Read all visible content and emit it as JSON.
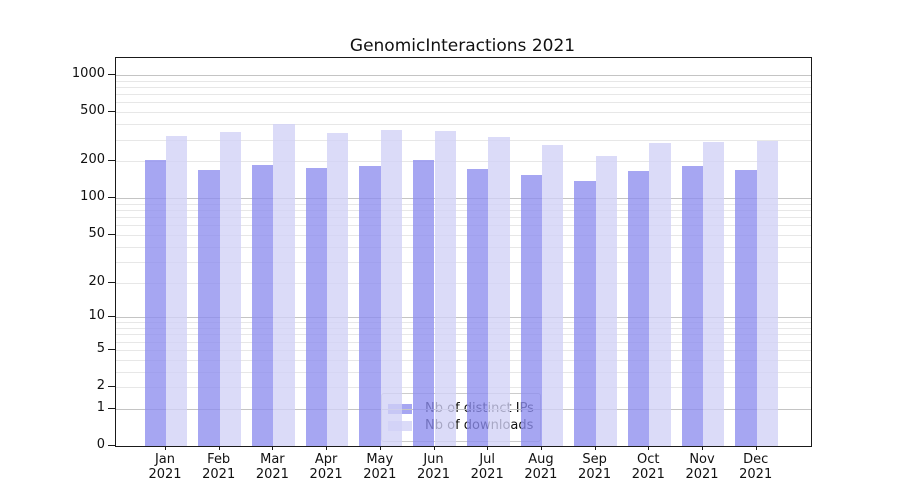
{
  "chart_data": {
    "type": "bar",
    "title": "GenomicInteractions 2021",
    "categories": [
      "Jan 2021",
      "Feb 2021",
      "Mar 2021",
      "Apr 2021",
      "May 2021",
      "Jun 2021",
      "Jul 2021",
      "Aug 2021",
      "Sep 2021",
      "Oct 2021",
      "Nov 2021",
      "Dec 2021"
    ],
    "series": [
      {
        "name": "Nb of distinct IPs",
        "color": "#a6a6f2",
        "values": [
          205,
          171,
          186,
          175,
          184,
          206,
          174,
          155,
          138,
          168,
          183,
          170
        ]
      },
      {
        "name": "Nb of downloads",
        "color": "#dbdbf8",
        "values": [
          320,
          344,
          400,
          340,
          359,
          353,
          316,
          270,
          222,
          280,
          288,
          294
        ]
      }
    ],
    "y_scale": "log10(1+v)",
    "y_ticks": [
      0,
      1,
      2,
      5,
      10,
      20,
      50,
      100,
      200,
      500,
      1000
    ],
    "ylim": [
      0,
      1400
    ],
    "xlabel": "",
    "ylabel": "",
    "grid": true,
    "legend_position": "lower center",
    "colors": {
      "grid_major": "#c4c4c4",
      "grid_minor": "#e7e7e7",
      "spine": "#1a1a1a",
      "background": "#ffffff"
    }
  }
}
